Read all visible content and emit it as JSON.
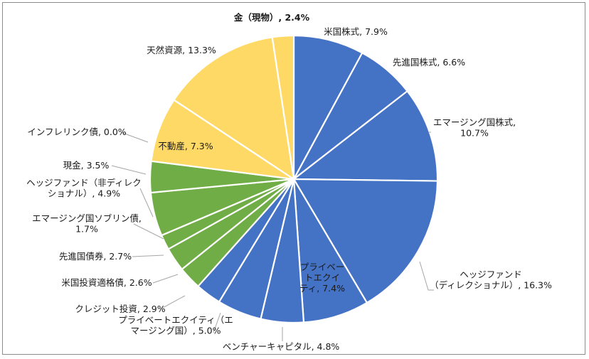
{
  "chart_data": {
    "type": "pie",
    "start_angle_deg": 0,
    "direction": "clockwise",
    "title": "",
    "slices": [
      {
        "label": "米国株式",
        "value": 7.9,
        "value_text": "7.9%",
        "color": "#4472c4"
      },
      {
        "label": "先進国株式",
        "value": 6.6,
        "value_text": "6.6%",
        "color": "#4472c4"
      },
      {
        "label": "エマージング国株式",
        "value": 10.7,
        "value_text": "10.7%",
        "color": "#4472c4"
      },
      {
        "label": "ヘッジファンド（ディレクショナル）",
        "value": 16.3,
        "value_text": "16.3%",
        "color": "#4472c4"
      },
      {
        "label": "プライベートエクイティ",
        "value": 7.4,
        "value_text": "7.4%",
        "color": "#4472c4"
      },
      {
        "label": "ベンチャーキャピタル",
        "value": 4.8,
        "value_text": "4.8%",
        "color": "#4472c4"
      },
      {
        "label": "プライベートエクイティ（エマージング国）",
        "value": 5.0,
        "value_text": "5.0%",
        "color": "#4472c4"
      },
      {
        "label": "クレジット投資",
        "value": 2.9,
        "value_text": "2.9%",
        "color": "#4472c4"
      },
      {
        "label": "米国投資適格債",
        "value": 2.6,
        "value_text": "2.6%",
        "color": "#70ad47"
      },
      {
        "label": "先進国債券",
        "value": 2.7,
        "value_text": "2.7%",
        "color": "#70ad47"
      },
      {
        "label": "エマージング国ソブリン債",
        "value": 1.7,
        "value_text": "1.7%",
        "color": "#70ad47"
      },
      {
        "label": "ヘッジファンド（非ディレクショナル）",
        "value": 4.9,
        "value_text": "4.9%",
        "color": "#70ad47"
      },
      {
        "label": "現金",
        "value": 3.5,
        "value_text": "3.5%",
        "color": "#70ad47"
      },
      {
        "label": "インフレリンク債",
        "value": 0.0,
        "value_text": "0.0%",
        "color": "#70ad47"
      },
      {
        "label": "不動産",
        "value": 7.3,
        "value_text": "7.3%",
        "color": "#ffd966"
      },
      {
        "label": "天然資源",
        "value": 13.3,
        "value_text": "13.3%",
        "color": "#ffd966"
      },
      {
        "label": "金（現物）",
        "value": 2.4,
        "value_text": "2.4%",
        "color": "#ffd966"
      }
    ],
    "data_labels": [
      {
        "lines": [
          "米国株式, 7.9%"
        ],
        "bold": false
      },
      {
        "lines": [
          "先進国株式, 6.6%"
        ],
        "bold": false
      },
      {
        "lines": [
          "エマージング国株式,",
          "10.7%"
        ],
        "bold": false
      },
      {
        "lines": [
          "ヘッジファンド",
          "（ディレクショナル）, 16.3%"
        ],
        "bold": false
      },
      {
        "lines": [
          "プライベー",
          "トエクイ",
          "ティ, 7.4%"
        ],
        "bold": false
      },
      {
        "lines": [
          "ベンチャーキャピタル, 4.8%"
        ],
        "bold": false
      },
      {
        "lines": [
          "プライベートエクイティ（エ",
          "マージング国）, 5.0%"
        ],
        "bold": false
      },
      {
        "lines": [
          "クレジット投資, 2.9%"
        ],
        "bold": false
      },
      {
        "lines": [
          "米国投資適格債, 2.6%"
        ],
        "bold": false
      },
      {
        "lines": [
          "先進国債券, 2.7%"
        ],
        "bold": false
      },
      {
        "lines": [
          "エマージング国ソブリン債,",
          "1.7%"
        ],
        "bold": false
      },
      {
        "lines": [
          "ヘッジファンド（非ディレク",
          "ショナル）, 4.9%"
        ],
        "bold": false
      },
      {
        "lines": [
          "現金, 3.5%"
        ],
        "bold": false
      },
      {
        "lines": [
          "インフレリンク債, 0.0%"
        ],
        "bold": false
      },
      {
        "lines": [
          "不動産, 7.3%"
        ],
        "bold": false
      },
      {
        "lines": [
          "天然資源, 13.3%"
        ],
        "bold": false
      },
      {
        "lines": [
          "金（現物）, 2.4%"
        ],
        "bold": true
      }
    ],
    "legend": "none"
  }
}
